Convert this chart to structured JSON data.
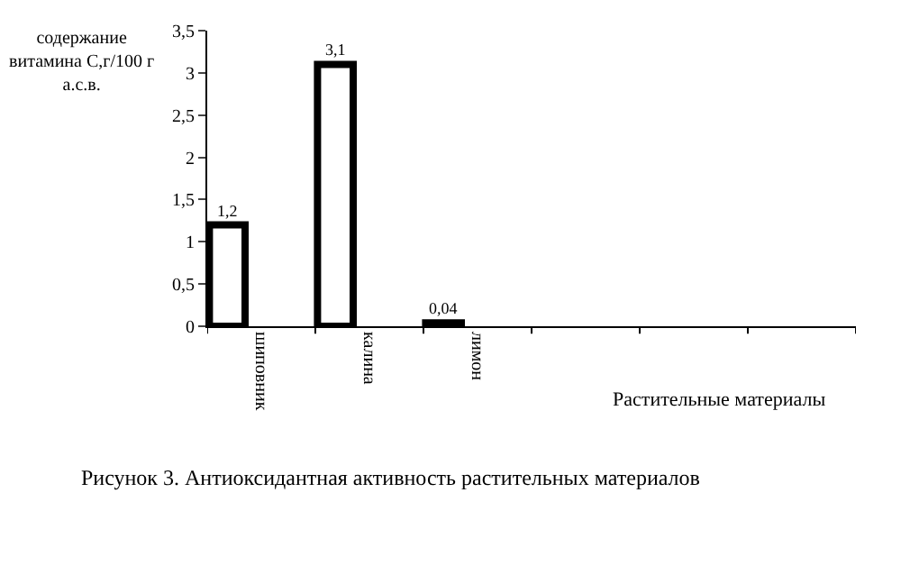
{
  "chart_data": {
    "type": "bar",
    "title": "Рисунок 3. Антиоксидантная активность растительных материалов",
    "ylabel": "содержание витамина С,г/100 г а.с.в.",
    "xlabel": "Растительные материалы",
    "categories": [
      "шиповник",
      "калина",
      "лимон",
      null,
      null,
      null
    ],
    "values": [
      1.2,
      3.1,
      0.04,
      null,
      null,
      null
    ],
    "value_labels": [
      "1,2",
      "3,1",
      "0,04",
      null,
      null,
      null
    ],
    "color": "#ffffff",
    "ylim": [
      0,
      3.5
    ],
    "yticks": [
      {
        "value": 0,
        "label": "0"
      },
      {
        "value": 0.5,
        "label": "0,5"
      },
      {
        "value": 1,
        "label": "1"
      },
      {
        "value": 1.5,
        "label": "1,5"
      },
      {
        "value": 2,
        "label": "2"
      },
      {
        "value": 2.5,
        "label": "2,5"
      },
      {
        "value": 3,
        "label": "3"
      },
      {
        "value": 3.5,
        "label": "3,5"
      }
    ],
    "legend": false
  }
}
